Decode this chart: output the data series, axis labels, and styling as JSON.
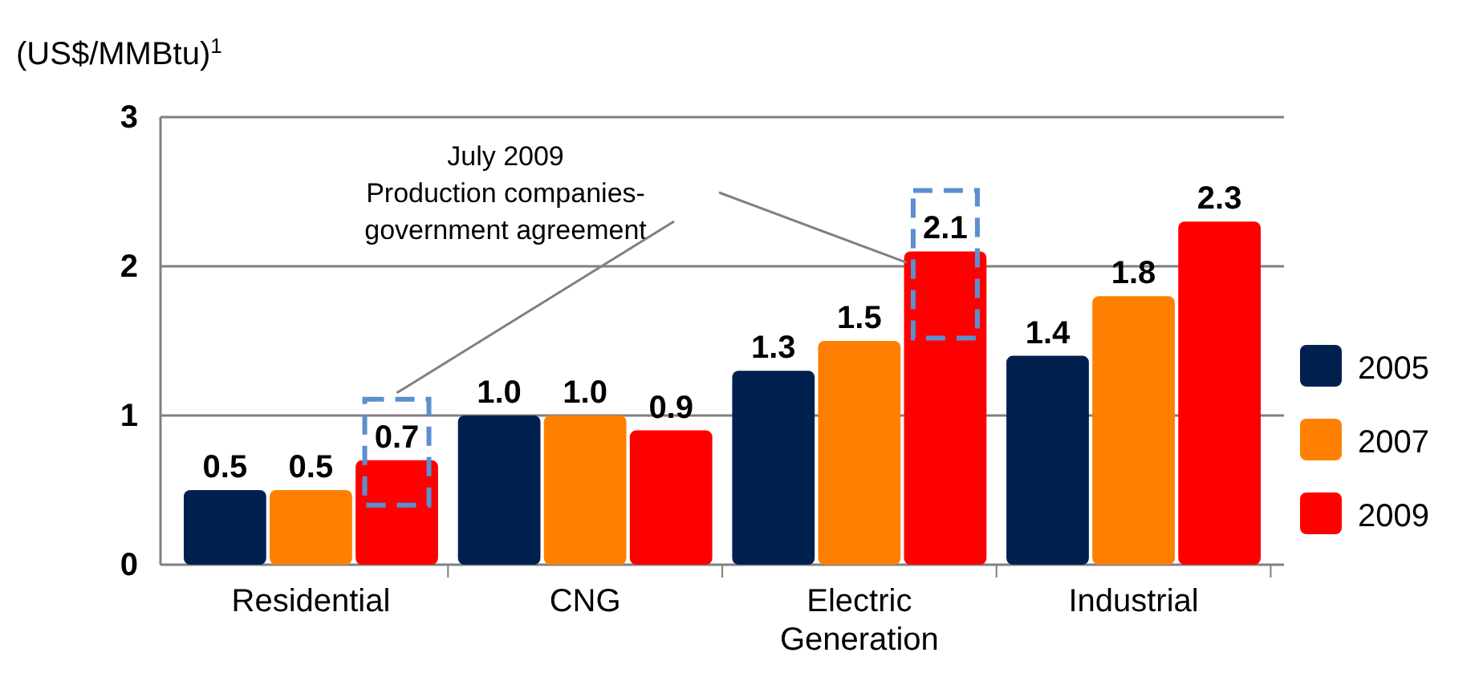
{
  "chart_data": {
    "type": "bar",
    "ylabel": "(US$/MMBtu)$^{1}$",
    "categories": [
      "Residential",
      "CNG",
      "Electric Generation",
      "Industrial"
    ],
    "series": [
      {
        "name": "2005",
        "color": "#002050",
        "values": [
          0.5,
          1.0,
          1.3,
          1.4
        ],
        "value_labels": [
          "0.5",
          "1.0",
          "1.3",
          "1.4"
        ]
      },
      {
        "name": "2007",
        "color": "#ff8000",
        "values": [
          0.5,
          1.0,
          1.5,
          1.8
        ],
        "value_labels": [
          "0.5",
          "1.0",
          "1.5",
          "1.8"
        ]
      },
      {
        "name": "2009",
        "color": "#ff0000",
        "values": [
          0.7,
          0.9,
          2.1,
          2.3
        ],
        "value_labels": [
          "0.7",
          "0.9",
          "2.1",
          "2.3"
        ]
      }
    ],
    "ylim": [
      0,
      3
    ],
    "yticks": [
      0,
      1,
      2,
      3
    ],
    "grid": "y",
    "legend": "right",
    "annotations": [
      "July 2009\nProduction companies-\ngovernment agreement"
    ]
  }
}
